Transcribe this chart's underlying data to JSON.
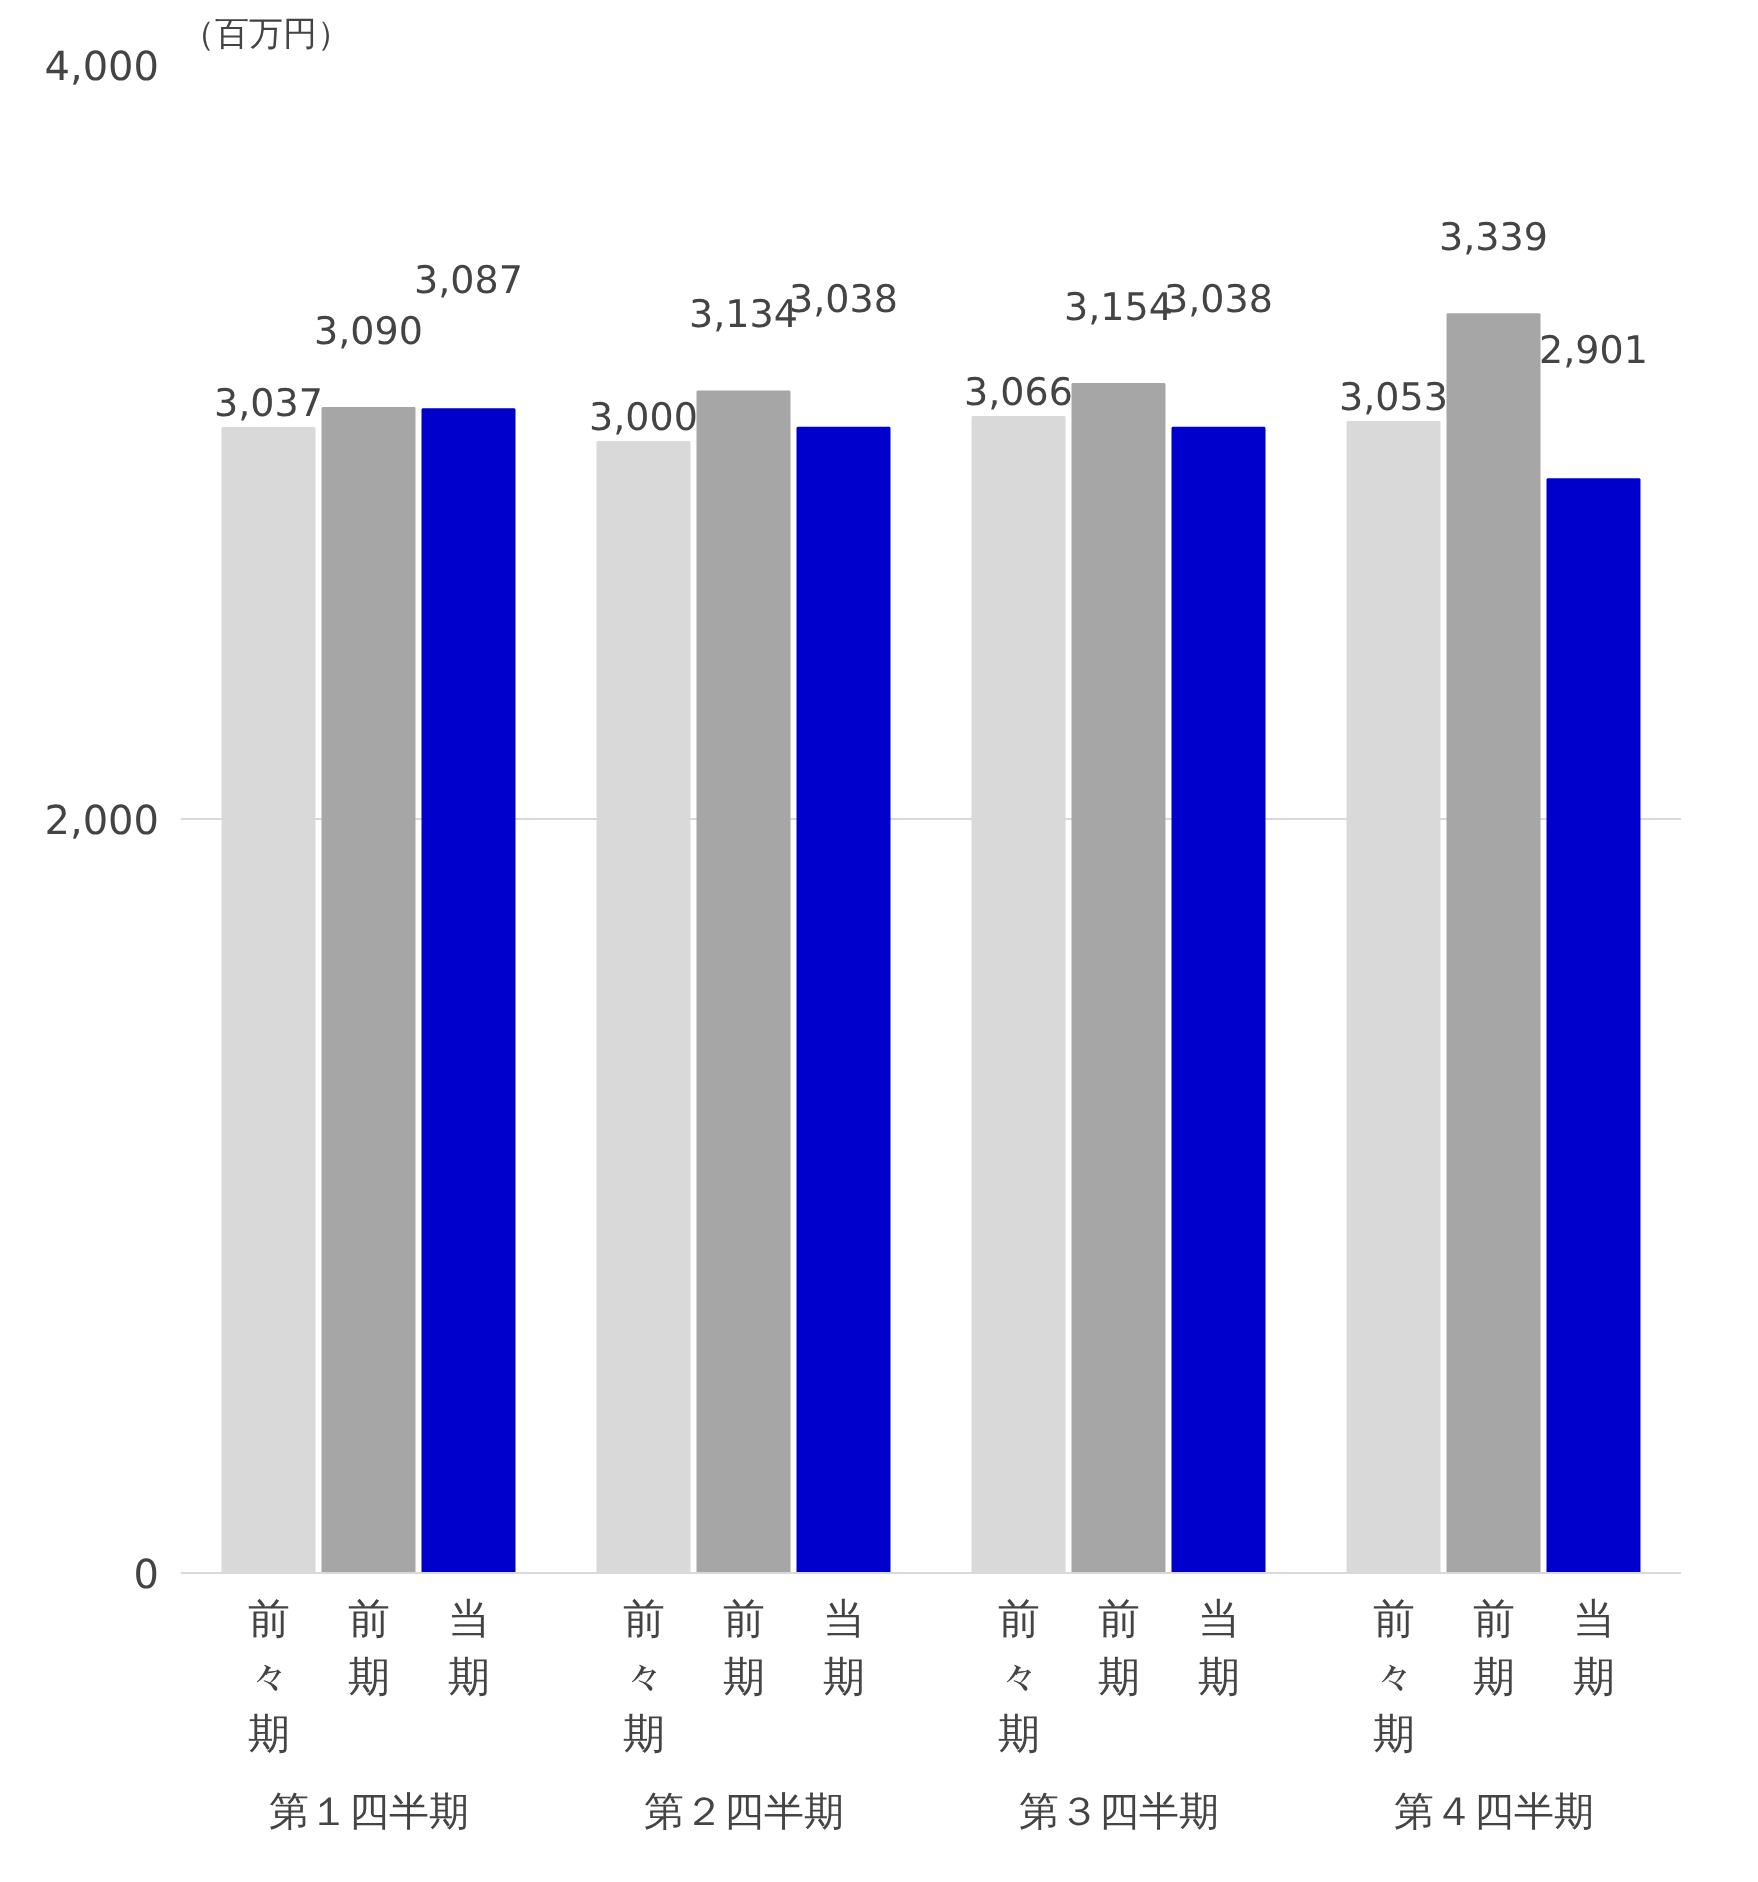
{
  "chart_data": {
    "type": "bar",
    "ylabel": "（百万円）",
    "categories": [
      "第１四半期",
      "第２四半期",
      "第３四半期",
      "第４四半期"
    ],
    "series": [
      {
        "name": "前々期",
        "color": "#d9d9d9",
        "values": [
          3037,
          3000,
          3066,
          3053
        ],
        "value_labels": [
          "3,037",
          "3,000",
          "3,066",
          "3,053"
        ]
      },
      {
        "name": "前期",
        "color": "#a6a6a6",
        "values": [
          3090,
          3134,
          3154,
          3339
        ],
        "value_labels": [
          "3,090",
          "3,134",
          "3,154",
          "3,339"
        ]
      },
      {
        "name": "当期",
        "color": "#0000cc",
        "values": [
          3087,
          3038,
          3038,
          2901
        ],
        "value_labels": [
          "3,087",
          "3,038",
          "3,038",
          "2,901"
        ]
      }
    ],
    "ylim": [
      0,
      4000
    ],
    "yticks": [
      0,
      {
        "value": 2000,
        "label": "2,000"
      },
      {
        "value": 4000,
        "label": "4,000"
      }
    ],
    "grid": "y"
  }
}
